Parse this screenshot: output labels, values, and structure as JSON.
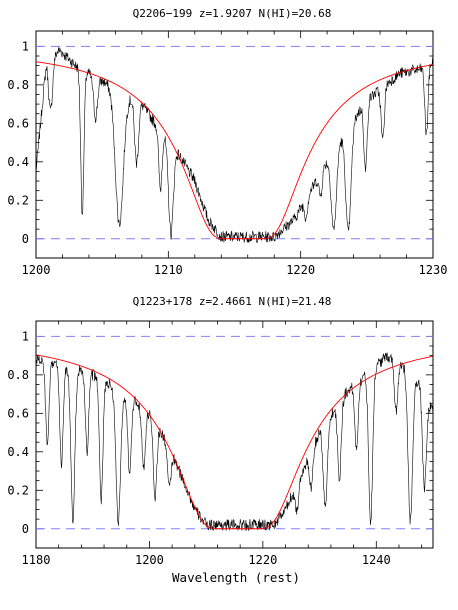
{
  "chart_data": [
    {
      "type": "line",
      "title": "Q2206−199  z=1.9207  N(HI)=20.68",
      "xlabel": "",
      "ylabel": "",
      "xlim": [
        1200,
        1230
      ],
      "ylim": [
        -0.1,
        1.08
      ],
      "x_ticks": [
        1200,
        1210,
        1220,
        1230
      ],
      "x_tick_labels": [
        "1200",
        "1210",
        "1220",
        "1230"
      ],
      "y_ticks": [
        0,
        0.2,
        0.4,
        0.6,
        0.8,
        1
      ],
      "y_tick_labels": [
        "0",
        "0.2",
        "0.4",
        "0.6",
        "0.8",
        "1"
      ],
      "reference_lines": [
        0,
        1
      ],
      "series": [
        {
          "kind": "spectrum",
          "color": "#000000",
          "continuum": [
            [
              1200,
              0.35
            ],
            [
              1200.8,
              0.93
            ],
            [
              1201.8,
              0.98
            ],
            [
              1203.0,
              0.9
            ],
            [
              1205.0,
              0.82
            ],
            [
              1208.0,
              0.7
            ],
            [
              1209.0,
              0.6
            ],
            [
              1210.5,
              0.47
            ],
            [
              1212.0,
              0.3
            ],
            [
              1213.0,
              0.1
            ],
            [
              1214.0,
              0.01
            ],
            [
              1218.0,
              0.01
            ],
            [
              1219.5,
              0.1
            ],
            [
              1221.0,
              0.28
            ],
            [
              1222.5,
              0.47
            ],
            [
              1225.0,
              0.72
            ],
            [
              1227.5,
              0.86
            ],
            [
              1229.0,
              0.88
            ],
            [
              1230,
              0.92
            ]
          ],
          "absorption_lines": [
            [
              1201.1,
              0.3,
              0.15
            ],
            [
              1203.5,
              0.85,
              0.12
            ],
            [
              1204.5,
              0.25,
              0.15
            ],
            [
              1206.3,
              0.9,
              0.3
            ],
            [
              1207.6,
              0.45,
              0.15
            ],
            [
              1209.4,
              0.55,
              0.12
            ],
            [
              1210.2,
              0.95,
              0.18
            ],
            [
              1220.4,
              0.45,
              0.12
            ],
            [
              1221.5,
              0.35,
              0.12
            ],
            [
              1222.5,
              0.9,
              0.2
            ],
            [
              1223.6,
              0.95,
              0.2
            ],
            [
              1224.9,
              0.5,
              0.12
            ],
            [
              1226.2,
              0.35,
              0.12
            ],
            [
              1229.5,
              0.4,
              0.12
            ]
          ]
        },
        {
          "kind": "damped Lyman-alpha fit",
          "color": "#ff0000",
          "center": 1215.67,
          "n_hi": 20.68,
          "redshift": 1.9207
        }
      ]
    },
    {
      "type": "line",
      "title": "Q1223+178  z=2.4661  N(HI)=21.48",
      "xlabel": "Wavelength (rest)",
      "ylabel": "",
      "xlim": [
        1180,
        1250
      ],
      "ylim": [
        -0.1,
        1.08
      ],
      "x_ticks": [
        1180,
        1200,
        1220,
        1240
      ],
      "x_tick_labels": [
        "1180",
        "1200",
        "1220",
        "1240"
      ],
      "y_ticks": [
        0,
        0.2,
        0.4,
        0.6,
        0.8,
        1
      ],
      "y_tick_labels": [
        "0",
        "0.2",
        "0.4",
        "0.6",
        "0.8",
        "1"
      ],
      "reference_lines": [
        0,
        1
      ],
      "series": [
        {
          "kind": "spectrum",
          "color": "#000000",
          "continuum": [
            [
              1180,
              0.88
            ],
            [
              1185,
              0.85
            ],
            [
              1190,
              0.8
            ],
            [
              1195,
              0.72
            ],
            [
              1200,
              0.6
            ],
            [
              1203,
              0.45
            ],
            [
              1206,
              0.25
            ],
            [
              1208,
              0.1
            ],
            [
              1210,
              0.02
            ],
            [
              1222,
              0.02
            ],
            [
              1224,
              0.1
            ],
            [
              1227,
              0.3
            ],
            [
              1230,
              0.5
            ],
            [
              1235,
              0.72
            ],
            [
              1240,
              0.85
            ],
            [
              1242,
              0.9
            ],
            [
              1245,
              0.85
            ],
            [
              1248,
              0.75
            ],
            [
              1250,
              0.6
            ]
          ],
          "absorption_lines": [
            [
              1182,
              0.5,
              0.3
            ],
            [
              1184.5,
              0.6,
              0.3
            ],
            [
              1186.5,
              0.95,
              0.35
            ],
            [
              1189,
              0.5,
              0.3
            ],
            [
              1191.5,
              0.8,
              0.3
            ],
            [
              1194.5,
              0.95,
              0.4
            ],
            [
              1196.5,
              0.6,
              0.3
            ],
            [
              1199,
              0.5,
              0.3
            ],
            [
              1201,
              0.7,
              0.3
            ],
            [
              1203.5,
              0.5,
              0.3
            ],
            [
              1226,
              0.6,
              0.3
            ],
            [
              1228.5,
              0.5,
              0.3
            ],
            [
              1231,
              0.8,
              0.35
            ],
            [
              1233.5,
              0.6,
              0.3
            ],
            [
              1236.5,
              0.45,
              0.3
            ],
            [
              1239,
              0.95,
              0.35
            ],
            [
              1243.5,
              0.3,
              0.3
            ],
            [
              1246,
              0.95,
              0.4
            ],
            [
              1248.5,
              0.7,
              0.35
            ]
          ]
        },
        {
          "kind": "damped Lyman-alpha fit",
          "color": "#ff0000",
          "center": 1215.67,
          "n_hi": 21.48,
          "redshift": 2.4661
        }
      ]
    }
  ]
}
